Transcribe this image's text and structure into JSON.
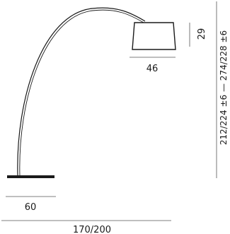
{
  "diagram": {
    "colors": {
      "line": "#1a1a1a",
      "dimension_line": "#555555",
      "shade_fill": "#ffffff"
    },
    "dimensions": {
      "shade_height": "29",
      "shade_width": "46",
      "base_width": "60",
      "reach": "170/200",
      "height_range": "212/224 ±6 — 274/228 ±6"
    }
  }
}
